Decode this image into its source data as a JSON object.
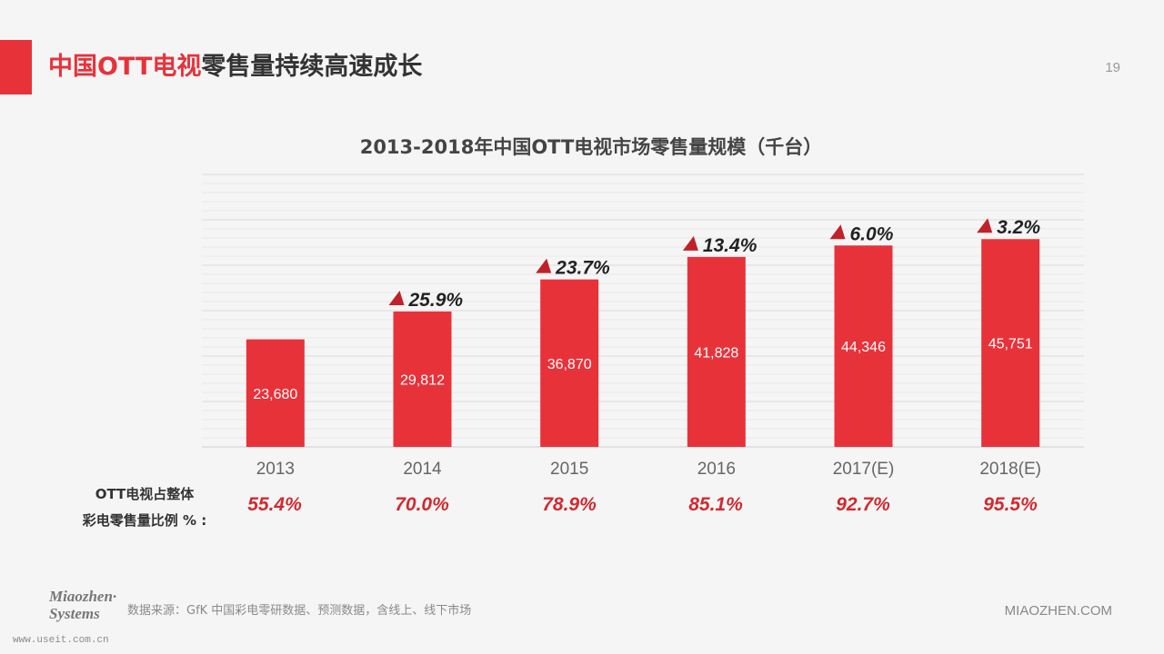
{
  "header": {
    "title_red_1": "中国",
    "title_red_2": "OTT电视",
    "title_rest": "零售量持续高速成长",
    "page_number": "19"
  },
  "chart_data": {
    "type": "bar",
    "title": "2013-2018年中国OTT电视市场零售量规模（千台）",
    "categories": [
      "2013",
      "2014",
      "2015",
      "2016",
      "2017(E)",
      "2018(E)"
    ],
    "values": [
      23680,
      29812,
      36870,
      41828,
      44346,
      45751
    ],
    "value_labels": [
      "23,680",
      "29,812",
      "36,870",
      "41,828",
      "44,346",
      "45,751"
    ],
    "growth_labels": [
      "",
      "25.9%",
      "23.7%",
      "13.4%",
      "6.0%",
      "3.2%"
    ],
    "ylim": [
      0,
      60000
    ],
    "grid": true,
    "legend": "none",
    "bar_color": "#e8323a",
    "growth_marker_color": "#c0222a"
  },
  "share": {
    "label_line1": "OTT电视占整体",
    "label_line2": "彩电零售量比例 % :",
    "values": [
      "55.4%",
      "70.0%",
      "78.9%",
      "85.1%",
      "92.7%",
      "95.5%"
    ]
  },
  "footer": {
    "logo_line1": "Miaozhen·",
    "logo_line2": "Systems",
    "watermark": "www.useit.com.cn",
    "source": "数据来源：GfK 中国彩电零研数据、预测数据，含线上、线下市场",
    "brand": "MIAOZHEN.COM"
  },
  "colors": {
    "accent": "#e8323a",
    "background": "#f5f5f5"
  }
}
